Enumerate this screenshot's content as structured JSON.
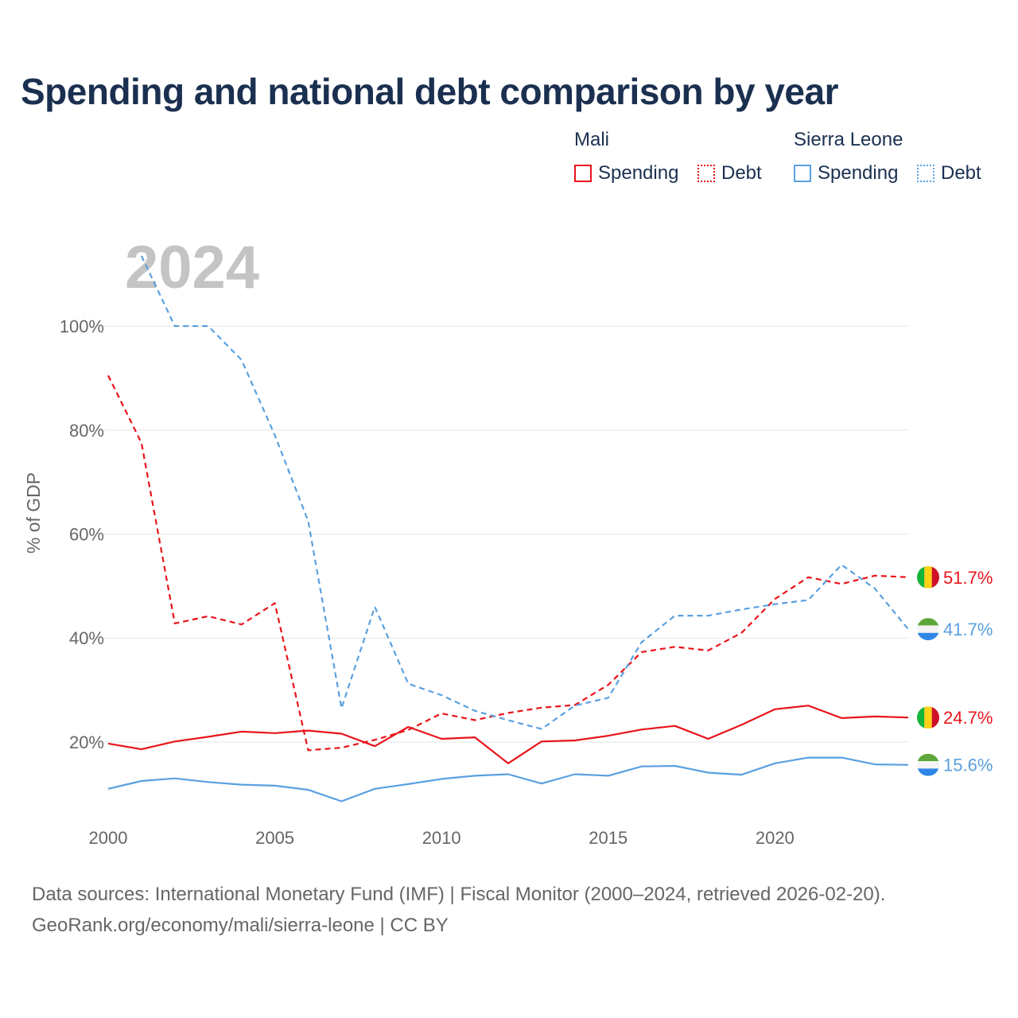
{
  "title": "Spending and national debt comparison by year",
  "legend": {
    "groups": [
      {
        "name": "Mali",
        "color": "#e8141a",
        "items": [
          "Spending",
          "Debt"
        ]
      },
      {
        "name": "Sierra Leone",
        "color": "#5aa0e0",
        "items": [
          "Spending",
          "Debt"
        ]
      }
    ]
  },
  "colors": {
    "mali": "#e8141a",
    "sierra_leone": "#5aa0e0",
    "year_watermark": "#c4c4c4",
    "grid": "#e6e6e6",
    "axis_text": "#666666"
  },
  "chart_data": {
    "type": "line",
    "year_label": "2024",
    "ylabel": "% of GDP",
    "x": [
      2000,
      2001,
      2002,
      2003,
      2004,
      2005,
      2006,
      2007,
      2008,
      2009,
      2010,
      2011,
      2012,
      2013,
      2014,
      2015,
      2016,
      2017,
      2018,
      2019,
      2020,
      2021,
      2022,
      2023,
      2024
    ],
    "xlim": [
      2000,
      2024
    ],
    "ylim": [
      5,
      115
    ],
    "x_ticks": [
      2000,
      2005,
      2010,
      2015,
      2020
    ],
    "y_ticks": [
      20,
      40,
      60,
      80,
      100
    ],
    "y_tick_labels": [
      "20%",
      "40%",
      "60%",
      "80%",
      "100%"
    ],
    "series": [
      {
        "name": "Mali Debt",
        "country": "Mali",
        "dashed": true,
        "color": "#e8141a",
        "values": [
          90.5,
          77.5,
          42.8,
          44.2,
          42.6,
          46.7,
          18.4,
          18.9,
          20.4,
          22.3,
          25.5,
          24.2,
          25.6,
          26.6,
          27.1,
          31,
          37.3,
          38.3,
          37.6,
          41,
          47.5,
          51.7,
          50.4,
          52,
          51.7
        ],
        "end_label": "51.7%"
      },
      {
        "name": "Sierra Leone Debt",
        "country": "Sierra Leone",
        "dashed": true,
        "color": "#5aa0e0",
        "values": [
          null,
          113.5,
          100,
          100,
          93.5,
          79,
          62.5,
          26.5,
          46,
          31.2,
          29,
          26,
          24.2,
          22.5,
          27,
          28.5,
          39.2,
          44.3,
          44.3,
          45.5,
          46.5,
          47.3,
          54.1,
          49.5,
          41.7
        ],
        "end_label": "41.7%"
      },
      {
        "name": "Mali Spending",
        "country": "Mali",
        "dashed": false,
        "color": "#e8141a",
        "values": [
          19.7,
          18.6,
          20.1,
          21,
          22,
          21.7,
          22.2,
          21.6,
          19.2,
          22.9,
          20.6,
          20.9,
          15.9,
          20.1,
          20.3,
          21.2,
          22.4,
          23.1,
          20.6,
          23.3,
          26.3,
          27,
          24.6,
          24.9,
          24.7
        ],
        "end_label": "24.7%"
      },
      {
        "name": "Sierra Leone Spending",
        "country": "Sierra Leone",
        "dashed": false,
        "color": "#5aa0e0",
        "values": [
          11,
          12.5,
          13,
          12.3,
          11.8,
          11.6,
          10.8,
          8.6,
          11,
          11.9,
          12.9,
          13.5,
          13.8,
          12,
          13.8,
          13.5,
          15.3,
          15.4,
          14.1,
          13.7,
          15.9,
          17,
          17,
          15.7,
          15.6
        ],
        "end_label": "15.6%"
      }
    ]
  },
  "source": {
    "line1": "Data sources: International Monetary Fund (IMF) | Fiscal Monitor (2000–2024, retrieved 2026-02-20).",
    "line2": "GeoRank.org/economy/mali/sierra-leone | CC BY"
  }
}
